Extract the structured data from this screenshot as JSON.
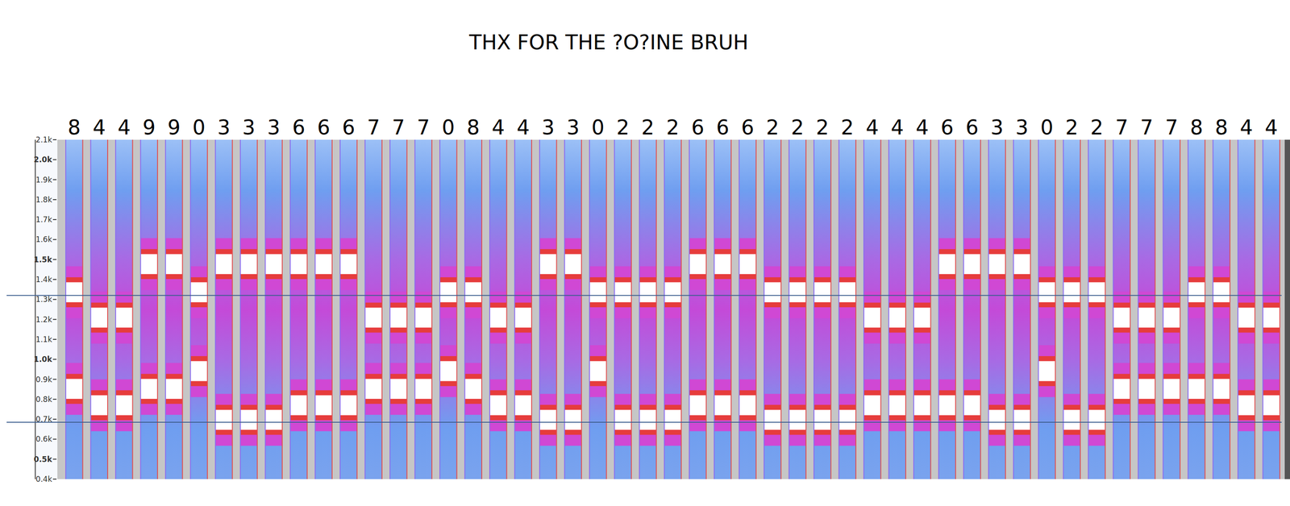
{
  "chart_data": {
    "type": "spectrogram",
    "title": "THX FOR THE ?O?INE BRUH",
    "categories": [
      "8",
      "4",
      "4",
      "9",
      "9",
      "0",
      "3",
      "3",
      "3",
      "6",
      "6",
      "6",
      "7",
      "7",
      "7",
      "0",
      "8",
      "4",
      "4",
      "3",
      "3",
      "0",
      "2",
      "2",
      "2",
      "6",
      "6",
      "6",
      "2",
      "2",
      "2",
      "2",
      "4",
      "4",
      "4",
      "6",
      "6",
      "3",
      "3",
      "0",
      "2",
      "2",
      "7",
      "7",
      "7",
      "8",
      "8",
      "4",
      "4"
    ],
    "series": [
      {
        "color": "#ffffff",
        "values": [
          852,
          770,
          770,
          852,
          852,
          941,
          697,
          697,
          697,
          770,
          770,
          770,
          852,
          852,
          852,
          941,
          852,
          770,
          770,
          697,
          697,
          941,
          697,
          697,
          697,
          770,
          770,
          770,
          697,
          697,
          697,
          697,
          770,
          770,
          770,
          770,
          770,
          697,
          697,
          941,
          697,
          697,
          852,
          852,
          852,
          852,
          852,
          770,
          770
        ]
      },
      {
        "color": "#ffffff",
        "values": [
          1336,
          1209,
          1209,
          1477,
          1477,
          1336,
          1477,
          1477,
          1477,
          1477,
          1477,
          1477,
          1209,
          1209,
          1209,
          1336,
          1336,
          1209,
          1209,
          1477,
          1477,
          1336,
          1336,
          1336,
          1336,
          1477,
          1477,
          1477,
          1336,
          1336,
          1336,
          1336,
          1209,
          1209,
          1209,
          1477,
          1477,
          1477,
          1477,
          1336,
          1336,
          1336,
          1209,
          1209,
          1209,
          1336,
          1336,
          1209,
          1209
        ]
      }
    ],
    "ylim": [
      400,
      2100
    ],
    "yticks": [
      {
        "value": 400,
        "label": "0.4k"
      },
      {
        "value": 500,
        "label": "0.5k"
      },
      {
        "value": 600,
        "label": "0.6k"
      },
      {
        "value": 700,
        "label": "0.7k"
      },
      {
        "value": 800,
        "label": "0.8k"
      },
      {
        "value": 900,
        "label": "0.9k"
      },
      {
        "value": 1000,
        "label": "1.0k"
      },
      {
        "value": 1100,
        "label": "1.1k"
      },
      {
        "value": 1200,
        "label": "1.2k"
      },
      {
        "value": 1300,
        "label": "1.3k"
      },
      {
        "value": 1400,
        "label": "1.4k"
      },
      {
        "value": 1500,
        "label": "1.5k"
      },
      {
        "value": 1600,
        "label": "1.6k"
      },
      {
        "value": 1700,
        "label": "1.7k"
      },
      {
        "value": 1800,
        "label": "1.8k"
      },
      {
        "value": 1900,
        "label": "1.9k"
      },
      {
        "value": 2000,
        "label": "2.0k"
      },
      {
        "value": 2100,
        "label": "2.1k"
      }
    ],
    "hlines": [
      1320,
      685
    ]
  }
}
